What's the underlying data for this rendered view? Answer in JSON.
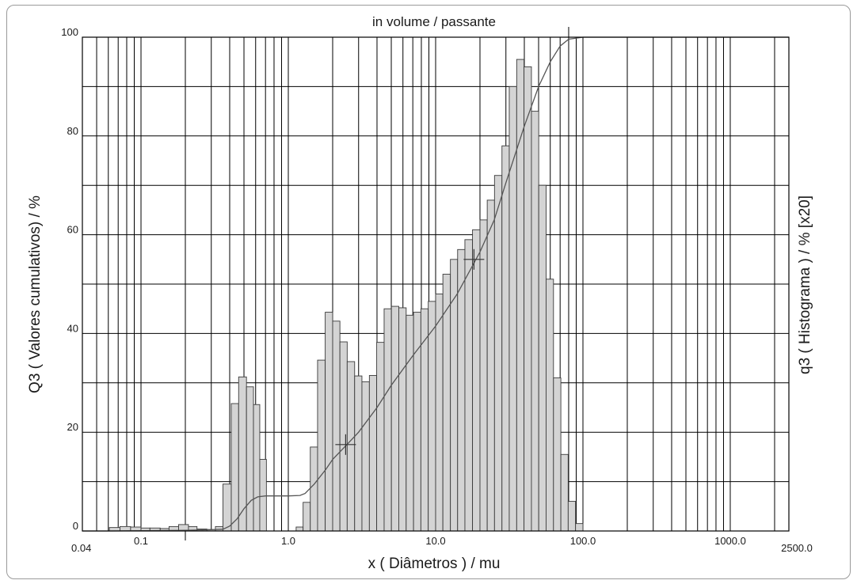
{
  "chart_data": {
    "type": "bar",
    "title": "in volume / passante",
    "xlabel": "x ( Diâmetros ) / mu",
    "ylabel": "Q3 ( Valores cumulativos) / %",
    "y2label": "q3 ( Histograma ) / % [x20]",
    "xscale": "log",
    "xlim": [
      0.04,
      2500.0
    ],
    "ylim": [
      0,
      100
    ],
    "grid": true,
    "x_tick_labels": [
      {
        "value": 0.04,
        "label": "0.04"
      },
      {
        "value": 0.1,
        "label": "0.1"
      },
      {
        "value": 1.0,
        "label": "1.0"
      },
      {
        "value": 10.0,
        "label": "10.0"
      },
      {
        "value": 100.0,
        "label": "100.0"
      },
      {
        "value": 1000.0,
        "label": "1000.0"
      },
      {
        "value": 2500.0,
        "label": "2500.0"
      }
    ],
    "y_tick_labels": [
      {
        "value": 0,
        "label": "0"
      },
      {
        "value": 20,
        "label": "20"
      },
      {
        "value": 40,
        "label": "40"
      },
      {
        "value": 60,
        "label": "60"
      },
      {
        "value": 80,
        "label": "80"
      },
      {
        "value": 100,
        "label": "100"
      }
    ],
    "x_grid_lines": [
      0.04,
      0.05,
      0.06,
      0.07,
      0.08,
      0.09,
      0.1,
      0.2,
      0.3,
      0.4,
      0.5,
      0.6,
      0.7,
      0.8,
      0.9,
      1,
      2,
      3,
      4,
      5,
      6,
      7,
      8,
      9,
      10,
      20,
      30,
      40,
      50,
      60,
      70,
      80,
      90,
      100,
      200,
      300,
      400,
      500,
      600,
      700,
      800,
      900,
      1000,
      2000,
      2500
    ],
    "histogram": {
      "name": "q3 ( Histograma )",
      "bins": [
        [
          0.061,
          0.072,
          0.7
        ],
        [
          0.072,
          0.085,
          0.9
        ],
        [
          0.085,
          0.1,
          0.8
        ],
        [
          0.1,
          0.115,
          0.6
        ],
        [
          0.115,
          0.135,
          0.6
        ],
        [
          0.135,
          0.155,
          0.5
        ],
        [
          0.155,
          0.18,
          0.9
        ],
        [
          0.18,
          0.21,
          1.3
        ],
        [
          0.21,
          0.24,
          0.9
        ],
        [
          0.24,
          0.28,
          0.4
        ],
        [
          0.28,
          0.32,
          0.3
        ],
        [
          0.32,
          0.36,
          0.9
        ],
        [
          0.36,
          0.41,
          9.5
        ],
        [
          0.41,
          0.46,
          25.8
        ],
        [
          0.46,
          0.52,
          31.2
        ],
        [
          0.52,
          0.58,
          29.2
        ],
        [
          0.58,
          0.64,
          25.6
        ],
        [
          0.64,
          0.71,
          14.5
        ],
        [
          1.13,
          1.26,
          0.8
        ],
        [
          1.26,
          1.41,
          5.8
        ],
        [
          1.41,
          1.58,
          17.0
        ],
        [
          1.58,
          1.78,
          34.6
        ],
        [
          1.78,
          2.0,
          44.3
        ],
        [
          2.0,
          2.24,
          42.5
        ],
        [
          2.24,
          2.51,
          38.3
        ],
        [
          2.51,
          2.82,
          34.3
        ],
        [
          2.82,
          3.16,
          31.4
        ],
        [
          3.16,
          3.55,
          30.2
        ],
        [
          3.55,
          3.98,
          31.5
        ],
        [
          3.98,
          4.47,
          38.2
        ],
        [
          4.47,
          5.01,
          45.0
        ],
        [
          5.01,
          5.62,
          45.5
        ],
        [
          5.62,
          6.31,
          45.2
        ],
        [
          6.31,
          7.08,
          43.7
        ],
        [
          7.08,
          7.94,
          44.3
        ],
        [
          7.94,
          8.91,
          45.0
        ],
        [
          8.91,
          10.0,
          46.5
        ],
        [
          10.0,
          11.2,
          48.0
        ],
        [
          11.2,
          12.6,
          52.0
        ],
        [
          12.6,
          14.1,
          55.0
        ],
        [
          14.1,
          15.8,
          57.0
        ],
        [
          15.8,
          17.8,
          59.0
        ],
        [
          17.8,
          20.0,
          61.0
        ],
        [
          20.0,
          22.4,
          63.0
        ],
        [
          22.4,
          25.1,
          67.0
        ],
        [
          25.1,
          28.2,
          72.0
        ],
        [
          28.2,
          31.6,
          78.0
        ],
        [
          31.6,
          35.5,
          90.0
        ],
        [
          35.5,
          39.8,
          95.5
        ],
        [
          39.8,
          44.7,
          94.0
        ],
        [
          44.7,
          50.1,
          85.0
        ],
        [
          50.1,
          56.2,
          70.0
        ],
        [
          56.2,
          63.1,
          51.0
        ],
        [
          63.1,
          70.8,
          31.0
        ],
        [
          70.8,
          79.4,
          15.5
        ],
        [
          79.4,
          89.1,
          6.0
        ],
        [
          89.1,
          100.0,
          1.5
        ]
      ]
    },
    "cumulative": {
      "name": "Q3 ( Valores cumulativos)",
      "points": [
        [
          0.04,
          0
        ],
        [
          0.06,
          0
        ],
        [
          0.1,
          0.05
        ],
        [
          0.2,
          0.15
        ],
        [
          0.3,
          0.25
        ],
        [
          0.36,
          0.35
        ],
        [
          0.4,
          1.0
        ],
        [
          0.45,
          2.5
        ],
        [
          0.5,
          4.5
        ],
        [
          0.56,
          6.2
        ],
        [
          0.62,
          6.9
        ],
        [
          0.7,
          7.1
        ],
        [
          0.8,
          7.1
        ],
        [
          1.0,
          7.1
        ],
        [
          1.2,
          7.2
        ],
        [
          1.3,
          7.6
        ],
        [
          1.5,
          9.5
        ],
        [
          1.8,
          12.5
        ],
        [
          2.0,
          14.5
        ],
        [
          2.5,
          17.5
        ],
        [
          3.0,
          20.0
        ],
        [
          4.0,
          25.0
        ],
        [
          5.0,
          29.5
        ],
        [
          7.0,
          35.5
        ],
        [
          10.0,
          41.5
        ],
        [
          14.0,
          48.0
        ],
        [
          20.0,
          56.5
        ],
        [
          25.0,
          63.0
        ],
        [
          30.0,
          70.5
        ],
        [
          40.0,
          82.0
        ],
        [
          50.0,
          90.0
        ],
        [
          60.0,
          95.0
        ],
        [
          70.0,
          98.2
        ],
        [
          80.0,
          99.6
        ],
        [
          100.0,
          100.0
        ],
        [
          2500.0,
          100.0
        ]
      ]
    },
    "markers": [
      {
        "x": 2.45,
        "y": 17.5
      },
      {
        "x": 18.2,
        "y": 55.0
      }
    ]
  }
}
